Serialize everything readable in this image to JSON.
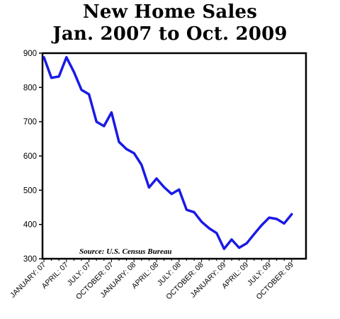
{
  "chart_data": {
    "type": "line",
    "title": "New Home Sales",
    "subtitle": "Jan. 2007 to Oct. 2009",
    "annotation": "Source: U.S. Census Bureau",
    "ylim": [
      300,
      900
    ],
    "yticks": [
      300,
      400,
      500,
      600,
      700,
      800,
      900
    ],
    "xtick_labels": [
      "JANUARY: 07",
      "APRIL: 07",
      "JULY: 07",
      "OCTOBER: 07",
      "JANUARY: 08",
      "APRIL: 08",
      "JULY: 08",
      "OCTOBER: 08",
      "JANUARY: 09",
      "APRIL: 09",
      "JULY: 09",
      "OCTOBER: 09"
    ],
    "grid": false,
    "line_color": "#1a1ae6",
    "series": [
      {
        "x": [
          "2007-01",
          "2007-02",
          "2007-03",
          "2007-04",
          "2007-05",
          "2007-06",
          "2007-07",
          "2007-08",
          "2007-09",
          "2007-10",
          "2007-11",
          "2007-12",
          "2008-01",
          "2008-02",
          "2008-03",
          "2008-04",
          "2008-05",
          "2008-06",
          "2008-07",
          "2008-08",
          "2008-09",
          "2008-10",
          "2008-11",
          "2008-12",
          "2009-01",
          "2009-02",
          "2009-03",
          "2009-04",
          "2009-05",
          "2009-06",
          "2009-07",
          "2009-08",
          "2009-09",
          "2009-10"
        ],
        "values": [
          888,
          828,
          832,
          888,
          845,
          793,
          780,
          700,
          687,
          727,
          641,
          620,
          608,
          574,
          508,
          534,
          509,
          489,
          502,
          443,
          436,
          408,
          389,
          375,
          329,
          356,
          332,
          345,
          372,
          398,
          420,
          416,
          403,
          430
        ]
      }
    ]
  }
}
